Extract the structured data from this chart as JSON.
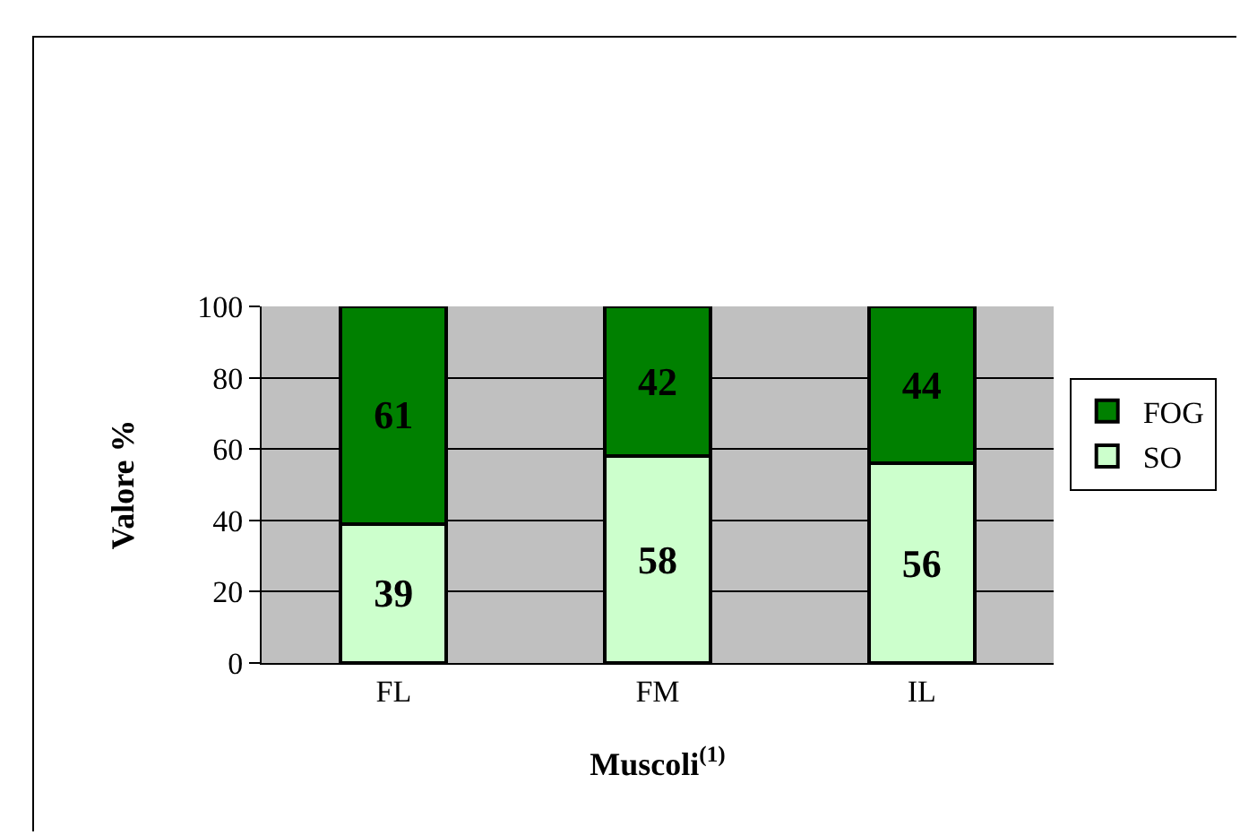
{
  "chart_data": {
    "type": "bar",
    "stacked": true,
    "xlabel": "Muscoli$^{(1)}$",
    "ylabel": "Valore %",
    "categories": [
      "FL",
      "FM",
      "IL"
    ],
    "series": [
      {
        "name": "SO",
        "color": "#ccffcc",
        "values": [
          39,
          58,
          56
        ]
      },
      {
        "name": "FOG",
        "color": "#008000",
        "values": [
          61,
          42,
          44
        ]
      }
    ],
    "ylim": [
      0,
      100
    ],
    "yticks": [
      0,
      20,
      40,
      60,
      80,
      100
    ],
    "grid": "y",
    "legend": "right",
    "data_labels": true
  }
}
